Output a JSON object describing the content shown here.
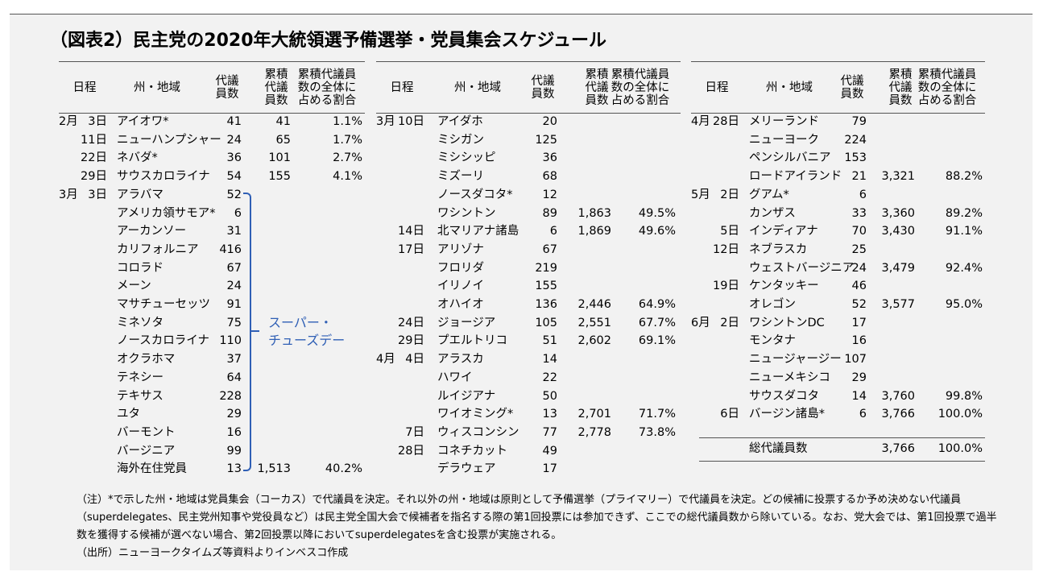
{
  "title": "（図表2）民主党の2020年大統領選予備選挙・党員集会スケジュール",
  "headers": {
    "date": "日程",
    "state": "州・地域",
    "delegates": [
      "代議",
      "員数"
    ],
    "cumulative": [
      "累積",
      "代議",
      "員数"
    ],
    "share": [
      "累積代議員",
      "数の全体に",
      "占める割合"
    ]
  },
  "col1": [
    {
      "m": "2月",
      "d": "3日",
      "s": "アイオワ*",
      "n": "41",
      "c": "41",
      "p": "1.1%"
    },
    {
      "m": "",
      "d": "11日",
      "s": "ニューハンプシャー",
      "n": "24",
      "c": "65",
      "p": "1.7%"
    },
    {
      "m": "",
      "d": "22日",
      "s": "ネバダ*",
      "n": "36",
      "c": "101",
      "p": "2.7%"
    },
    {
      "m": "",
      "d": "29日",
      "s": "サウスカロライナ",
      "n": "54",
      "c": "155",
      "p": "4.1%"
    },
    {
      "m": "3月",
      "d": "3日",
      "s": "アラバマ",
      "n": "52",
      "c": "",
      "p": ""
    },
    {
      "m": "",
      "d": "",
      "s": "アメリカ領サモア*",
      "n": "6",
      "c": "",
      "p": ""
    },
    {
      "m": "",
      "d": "",
      "s": "アーカンソー",
      "n": "31",
      "c": "",
      "p": ""
    },
    {
      "m": "",
      "d": "",
      "s": "カリフォルニア",
      "n": "416",
      "c": "",
      "p": ""
    },
    {
      "m": "",
      "d": "",
      "s": "コロラド",
      "n": "67",
      "c": "",
      "p": ""
    },
    {
      "m": "",
      "d": "",
      "s": "メーン",
      "n": "24",
      "c": "",
      "p": ""
    },
    {
      "m": "",
      "d": "",
      "s": "マサチューセッツ",
      "n": "91",
      "c": "",
      "p": ""
    },
    {
      "m": "",
      "d": "",
      "s": "ミネソタ",
      "n": "75",
      "c": "",
      "p": ""
    },
    {
      "m": "",
      "d": "",
      "s": "ノースカロライナ",
      "n": "110",
      "c": "",
      "p": ""
    },
    {
      "m": "",
      "d": "",
      "s": "オクラホマ",
      "n": "37",
      "c": "",
      "p": ""
    },
    {
      "m": "",
      "d": "",
      "s": "テネシー",
      "n": "64",
      "c": "",
      "p": ""
    },
    {
      "m": "",
      "d": "",
      "s": "テキサス",
      "n": "228",
      "c": "",
      "p": ""
    },
    {
      "m": "",
      "d": "",
      "s": "ユタ",
      "n": "29",
      "c": "",
      "p": ""
    },
    {
      "m": "",
      "d": "",
      "s": "バーモント",
      "n": "16",
      "c": "",
      "p": ""
    },
    {
      "m": "",
      "d": "",
      "s": "バージニア",
      "n": "99",
      "c": "",
      "p": ""
    },
    {
      "m": "",
      "d": "",
      "s": "海外在住党員",
      "n": "13",
      "c": "1,513",
      "p": "40.2%"
    }
  ],
  "super_label": [
    "スーパー・",
    "チューズデー"
  ],
  "col2": [
    {
      "m": "3月",
      "d": "10日",
      "s": "アイダホ",
      "n": "20",
      "c": "",
      "p": ""
    },
    {
      "m": "",
      "d": "",
      "s": "ミシガン",
      "n": "125",
      "c": "",
      "p": ""
    },
    {
      "m": "",
      "d": "",
      "s": "ミシシッピ",
      "n": "36",
      "c": "",
      "p": ""
    },
    {
      "m": "",
      "d": "",
      "s": "ミズーリ",
      "n": "68",
      "c": "",
      "p": ""
    },
    {
      "m": "",
      "d": "",
      "s": "ノースダコタ*",
      "n": "12",
      "c": "",
      "p": ""
    },
    {
      "m": "",
      "d": "",
      "s": "ワシントン",
      "n": "89",
      "c": "1,863",
      "p": "49.5%"
    },
    {
      "m": "",
      "d": "14日",
      "s": "北マリアナ諸島",
      "n": "6",
      "c": "1,869",
      "p": "49.6%"
    },
    {
      "m": "",
      "d": "17日",
      "s": "アリゾナ",
      "n": "67",
      "c": "",
      "p": ""
    },
    {
      "m": "",
      "d": "",
      "s": "フロリダ",
      "n": "219",
      "c": "",
      "p": ""
    },
    {
      "m": "",
      "d": "",
      "s": "イリノイ",
      "n": "155",
      "c": "",
      "p": ""
    },
    {
      "m": "",
      "d": "",
      "s": "オハイオ",
      "n": "136",
      "c": "2,446",
      "p": "64.9%"
    },
    {
      "m": "",
      "d": "24日",
      "s": "ジョージア",
      "n": "105",
      "c": "2,551",
      "p": "67.7%"
    },
    {
      "m": "",
      "d": "29日",
      "s": "プエルトリコ",
      "n": "51",
      "c": "2,602",
      "p": "69.1%"
    },
    {
      "m": "4月",
      "d": "4日",
      "s": "アラスカ",
      "n": "14",
      "c": "",
      "p": ""
    },
    {
      "m": "",
      "d": "",
      "s": "ハワイ",
      "n": "22",
      "c": "",
      "p": ""
    },
    {
      "m": "",
      "d": "",
      "s": "ルイジアナ",
      "n": "50",
      "c": "",
      "p": ""
    },
    {
      "m": "",
      "d": "",
      "s": "ワイオミング*",
      "n": "13",
      "c": "2,701",
      "p": "71.7%"
    },
    {
      "m": "",
      "d": "7日",
      "s": "ウィスコンシン",
      "n": "77",
      "c": "2,778",
      "p": "73.8%"
    },
    {
      "m": "",
      "d": "28日",
      "s": "コネチカット",
      "n": "49",
      "c": "",
      "p": ""
    },
    {
      "m": "",
      "d": "",
      "s": "デラウェア",
      "n": "17",
      "c": "",
      "p": ""
    }
  ],
  "col3": [
    {
      "m": "4月",
      "d": "28日",
      "s": "メリーランド",
      "n": "79",
      "c": "",
      "p": ""
    },
    {
      "m": "",
      "d": "",
      "s": "ニューヨーク",
      "n": "224",
      "c": "",
      "p": ""
    },
    {
      "m": "",
      "d": "",
      "s": "ペンシルバニア",
      "n": "153",
      "c": "",
      "p": ""
    },
    {
      "m": "",
      "d": "",
      "s": "ロードアイランド",
      "n": "21",
      "c": "3,321",
      "p": "88.2%"
    },
    {
      "m": "5月",
      "d": "2日",
      "s": "グアム*",
      "n": "6",
      "c": "",
      "p": ""
    },
    {
      "m": "",
      "d": "",
      "s": "カンザス",
      "n": "33",
      "c": "3,360",
      "p": "89.2%"
    },
    {
      "m": "",
      "d": "5日",
      "s": "インディアナ",
      "n": "70",
      "c": "3,430",
      "p": "91.1%"
    },
    {
      "m": "",
      "d": "12日",
      "s": "ネブラスカ",
      "n": "25",
      "c": "",
      "p": ""
    },
    {
      "m": "",
      "d": "",
      "s": "ウェストバージニア",
      "n": "24",
      "c": "3,479",
      "p": "92.4%"
    },
    {
      "m": "",
      "d": "19日",
      "s": "ケンタッキー",
      "n": "46",
      "c": "",
      "p": ""
    },
    {
      "m": "",
      "d": "",
      "s": "オレゴン",
      "n": "52",
      "c": "3,577",
      "p": "95.0%"
    },
    {
      "m": "6月",
      "d": "2日",
      "s": "ワシントンDC",
      "n": "17",
      "c": "",
      "p": ""
    },
    {
      "m": "",
      "d": "",
      "s": "モンタナ",
      "n": "16",
      "c": "",
      "p": ""
    },
    {
      "m": "",
      "d": "",
      "s": "ニュージャージー",
      "n": "107",
      "c": "",
      "p": ""
    },
    {
      "m": "",
      "d": "",
      "s": "ニューメキシコ",
      "n": "29",
      "c": "",
      "p": ""
    },
    {
      "m": "",
      "d": "",
      "s": "サウスダコタ",
      "n": "14",
      "c": "3,760",
      "p": "99.8%"
    },
    {
      "m": "",
      "d": "6日",
      "s": "バージン諸島*",
      "n": "6",
      "c": "3,766",
      "p": "100.0%"
    }
  ],
  "total": {
    "label": "総代議員数",
    "c": "3,766",
    "p": "100.0%"
  },
  "notes": [
    "（注）*で示した州・地域は党員集会（コーカス）で代議員を決定。それ以外の州・地域は原則として予備選挙（プライマリー）で代議員を決定。どの候補に投票するか予め決めない代議員（superdelegates、民主党州知事や党役員など）は民主党全国大会で候補者を指名する際の第1回投票には参加できず、ここでの総代議員数から除いている。なお、党大会では、第1回投票で過半数を獲得する候補が選べない場合、第2回投票以降においてsuperdelegatesを含む投票が実施される。",
    "（出所）ニューヨークタイムズ等資料よりインベスコ作成"
  ]
}
